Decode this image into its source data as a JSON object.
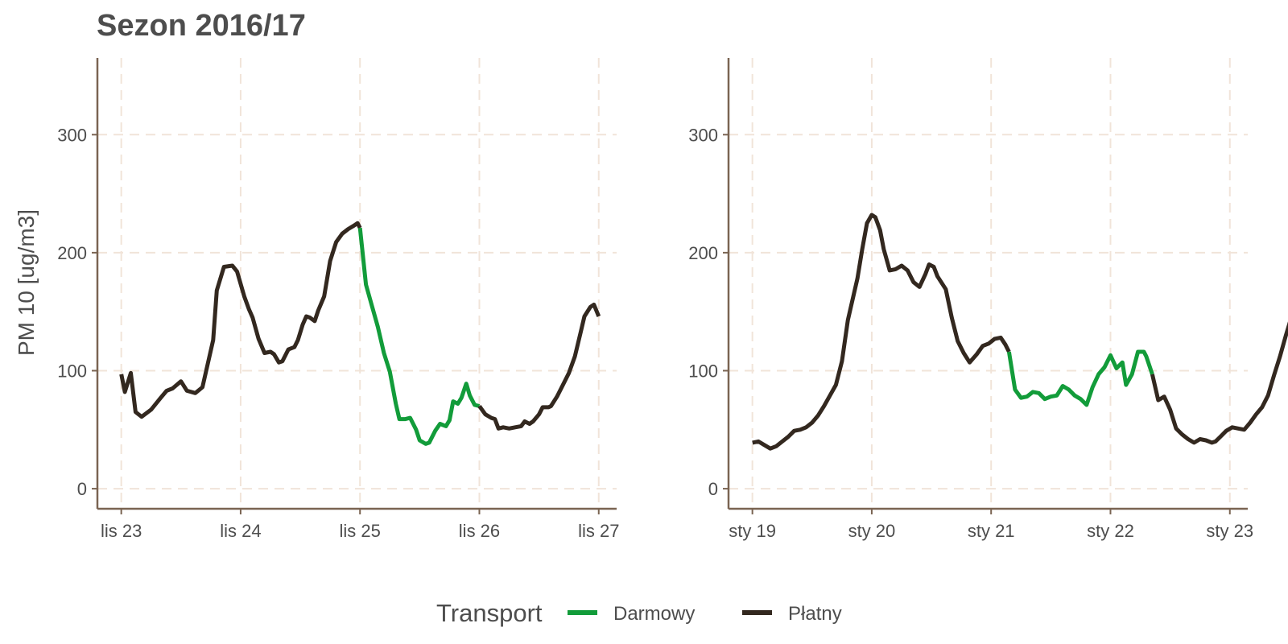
{
  "title": "Sezon 2016/17",
  "legend": {
    "title": "Transport",
    "items": [
      {
        "label": "Darmowy",
        "color": "#129c3a"
      },
      {
        "label": "Płatny",
        "color": "#33281f"
      }
    ]
  },
  "chart_data": [
    {
      "type": "line",
      "ylabel": "PM 10 [ug/m3]",
      "ylim": [
        -17,
        365
      ],
      "yticks": [
        0,
        100,
        200,
        300
      ],
      "xlim": [
        -0.2,
        4.15
      ],
      "xticks": [
        0,
        1,
        2,
        3,
        4
      ],
      "xtick_labels": [
        "lis 23",
        "lis 24",
        "lis 25",
        "lis 26",
        "lis 27"
      ],
      "grid": true,
      "segments": [
        {
          "series": "Płatny",
          "points": [
            [
              0,
              97
            ],
            [
              0.03,
              82
            ],
            [
              0.08,
              98
            ],
            [
              0.12,
              65
            ],
            [
              0.17,
              61
            ],
            [
              0.25,
              67
            ],
            [
              0.33,
              77
            ],
            [
              0.38,
              83
            ],
            [
              0.43,
              85
            ],
            [
              0.5,
              91
            ],
            [
              0.55,
              83
            ],
            [
              0.62,
              81
            ],
            [
              0.68,
              86
            ],
            [
              0.77,
              126
            ],
            [
              0.8,
              168
            ],
            [
              0.86,
              188
            ],
            [
              0.93,
              189
            ],
            [
              0.97,
              184
            ],
            [
              1.03,
              163
            ],
            [
              1.07,
              152
            ],
            [
              1.1,
              145
            ],
            [
              1.15,
              127
            ],
            [
              1.2,
              115
            ],
            [
              1.25,
              116
            ],
            [
              1.28,
              114
            ],
            [
              1.32,
              107
            ],
            [
              1.35,
              108
            ],
            [
              1.4,
              118
            ],
            [
              1.45,
              120
            ],
            [
              1.48,
              126
            ],
            [
              1.52,
              139
            ],
            [
              1.55,
              146
            ],
            [
              1.58,
              145
            ],
            [
              1.62,
              142
            ],
            [
              1.65,
              151
            ],
            [
              1.7,
              163
            ],
            [
              1.75,
              193
            ],
            [
              1.8,
              209
            ],
            [
              1.85,
              216
            ],
            [
              1.9,
              220
            ],
            [
              1.95,
              223
            ],
            [
              1.98,
              225
            ],
            [
              2.0,
              221
            ]
          ]
        },
        {
          "series": "Darmowy",
          "points": [
            [
              2.0,
              221
            ],
            [
              2.05,
              173
            ],
            [
              2.1,
              155
            ],
            [
              2.15,
              137
            ],
            [
              2.2,
              115
            ],
            [
              2.25,
              99
            ],
            [
              2.3,
              72
            ],
            [
              2.33,
              59
            ],
            [
              2.38,
              59
            ],
            [
              2.42,
              60
            ],
            [
              2.47,
              50
            ],
            [
              2.5,
              41
            ],
            [
              2.55,
              38
            ],
            [
              2.58,
              39
            ],
            [
              2.63,
              49
            ],
            [
              2.67,
              55
            ],
            [
              2.72,
              53
            ],
            [
              2.75,
              58
            ],
            [
              2.78,
              74
            ],
            [
              2.82,
              72
            ],
            [
              2.85,
              77
            ],
            [
              2.89,
              89
            ],
            [
              2.92,
              79
            ],
            [
              2.96,
              71
            ],
            [
              3.0,
              70
            ]
          ]
        },
        {
          "series": "Płatny",
          "points": [
            [
              3.0,
              70
            ],
            [
              3.05,
              63
            ],
            [
              3.1,
              60
            ],
            [
              3.13,
              59
            ],
            [
              3.16,
              51
            ],
            [
              3.2,
              52
            ],
            [
              3.25,
              51
            ],
            [
              3.3,
              52
            ],
            [
              3.35,
              53
            ],
            [
              3.38,
              57
            ],
            [
              3.42,
              55
            ],
            [
              3.45,
              57
            ],
            [
              3.5,
              63
            ],
            [
              3.53,
              69
            ],
            [
              3.58,
              69
            ],
            [
              3.6,
              70
            ],
            [
              3.65,
              78
            ],
            [
              3.7,
              88
            ],
            [
              3.75,
              98
            ],
            [
              3.8,
              112
            ],
            [
              3.85,
              133
            ],
            [
              3.88,
              146
            ],
            [
              3.93,
              154
            ],
            [
              3.96,
              156
            ],
            [
              4.0,
              146
            ]
          ]
        }
      ]
    },
    {
      "type": "line",
      "ylabel": "",
      "ylim": [
        -17,
        365
      ],
      "yticks": [
        0,
        100,
        200,
        300
      ],
      "xlim": [
        -0.2,
        4.15
      ],
      "xticks": [
        0,
        1,
        2,
        3,
        4
      ],
      "xtick_labels": [
        "sty 19",
        "sty 20",
        "sty 21",
        "sty 22",
        "sty 23"
      ],
      "grid": true,
      "segments": [
        {
          "series": "Płatny",
          "points": [
            [
              0,
              39
            ],
            [
              0.05,
              40
            ],
            [
              0.1,
              37
            ],
            [
              0.15,
              34
            ],
            [
              0.2,
              36
            ],
            [
              0.25,
              40
            ],
            [
              0.3,
              44
            ],
            [
              0.35,
              49
            ],
            [
              0.4,
              50
            ],
            [
              0.45,
              52
            ],
            [
              0.5,
              56
            ],
            [
              0.55,
              62
            ],
            [
              0.6,
              70
            ],
            [
              0.65,
              79
            ],
            [
              0.7,
              88
            ],
            [
              0.75,
              108
            ],
            [
              0.8,
              143
            ],
            [
              0.85,
              165
            ],
            [
              0.88,
              178
            ],
            [
              0.92,
              203
            ],
            [
              0.96,
              225
            ],
            [
              1.0,
              232
            ],
            [
              1.03,
              230
            ],
            [
              1.07,
              219
            ],
            [
              1.1,
              203
            ],
            [
              1.15,
              185
            ],
            [
              1.2,
              186
            ],
            [
              1.25,
              189
            ],
            [
              1.3,
              185
            ],
            [
              1.35,
              175
            ],
            [
              1.4,
              171
            ],
            [
              1.45,
              182
            ],
            [
              1.48,
              190
            ],
            [
              1.52,
              188
            ],
            [
              1.55,
              180
            ],
            [
              1.62,
              169
            ],
            [
              1.67,
              145
            ],
            [
              1.72,
              125
            ],
            [
              1.77,
              115
            ],
            [
              1.82,
              107
            ],
            [
              1.88,
              114
            ],
            [
              1.93,
              121
            ],
            [
              1.98,
              123
            ],
            [
              2.03,
              127
            ],
            [
              2.08,
              128
            ],
            [
              2.12,
              122
            ],
            [
              2.15,
              116
            ]
          ]
        },
        {
          "series": "Darmowy",
          "points": [
            [
              2.15,
              116
            ],
            [
              2.2,
              84
            ],
            [
              2.25,
              77
            ],
            [
              2.3,
              78
            ],
            [
              2.35,
              82
            ],
            [
              2.4,
              81
            ],
            [
              2.45,
              76
            ],
            [
              2.5,
              78
            ],
            [
              2.55,
              79
            ],
            [
              2.6,
              87
            ],
            [
              2.65,
              84
            ],
            [
              2.7,
              79
            ],
            [
              2.75,
              76
            ],
            [
              2.8,
              71
            ],
            [
              2.85,
              86
            ],
            [
              2.9,
              97
            ],
            [
              2.95,
              103
            ],
            [
              3.0,
              113
            ],
            [
              3.05,
              102
            ],
            [
              3.1,
              107
            ],
            [
              3.13,
              88
            ],
            [
              3.18,
              97
            ],
            [
              3.23,
              116
            ],
            [
              3.28,
              116
            ],
            [
              3.3,
              112
            ],
            [
              3.35,
              97
            ]
          ]
        },
        {
          "series": "Płatny",
          "points": [
            [
              3.35,
              97
            ],
            [
              3.4,
              75
            ],
            [
              3.45,
              78
            ],
            [
              3.5,
              67
            ],
            [
              3.55,
              51
            ],
            [
              3.6,
              46
            ],
            [
              3.65,
              42
            ],
            [
              3.7,
              39
            ],
            [
              3.75,
              42
            ],
            [
              3.8,
              41
            ],
            [
              3.85,
              39
            ],
            [
              3.88,
              40
            ],
            [
              3.92,
              44
            ],
            [
              3.97,
              49
            ],
            [
              4.02,
              52
            ],
            [
              4.07,
              51
            ],
            [
              4.12,
              50
            ],
            [
              4.17,
              56
            ],
            [
              4.22,
              63
            ],
            [
              4.27,
              69
            ],
            [
              4.32,
              79
            ],
            [
              4.37,
              96
            ],
            [
              4.42,
              112
            ],
            [
              4.47,
              130
            ],
            [
              4.52,
              147
            ]
          ]
        }
      ]
    }
  ]
}
